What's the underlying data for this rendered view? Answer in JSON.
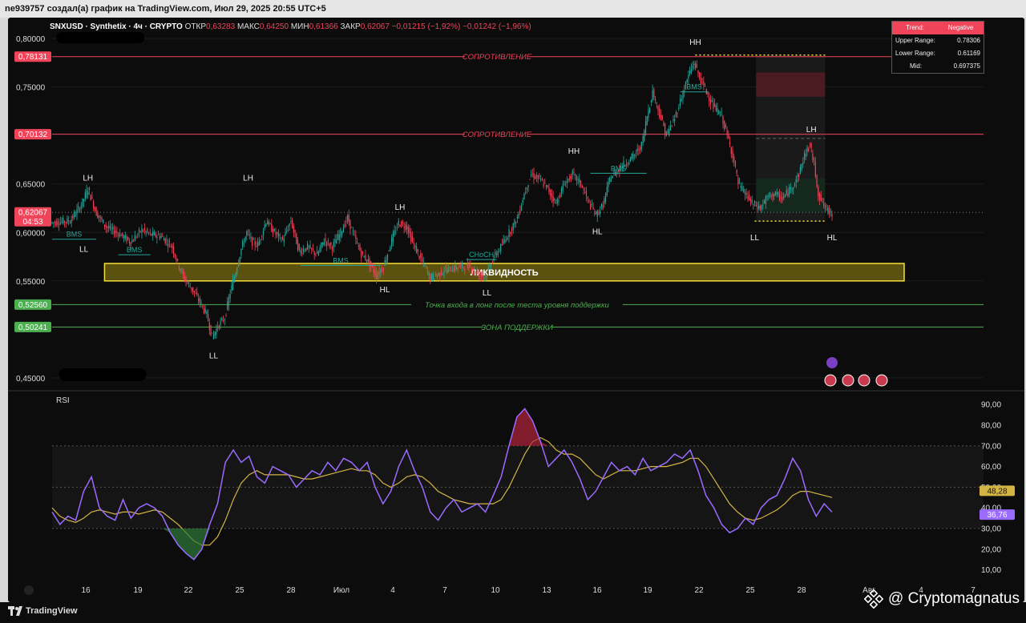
{
  "header_title": "ne939757 создал(а) график на TradingView.com, Июл 29, 2025 20:55 UTC+5",
  "legend": {
    "symbol": "SNXUSD · Synthetix · 4ч · CRYPTO",
    "open_label": "ОТКР",
    "open": "0,63283",
    "high_label": "МАКС",
    "high": "0,64250",
    "low_label": "МИН",
    "low": "0,61366",
    "close_label": "ЗАКР",
    "close": "0,62067",
    "change": "−0,01215 (−1,92%)",
    "change2": "−0,01242 (−1,96%)"
  },
  "trend_table": {
    "trend_label": "Trend:",
    "trend_value": "Negative",
    "upper_label": "Upper Range:",
    "upper_value": "0.78306",
    "lower_label": "Lower Range:",
    "lower_value": "0.61169",
    "mid_label": "Mid:",
    "mid_value": "0.697375"
  },
  "rsi_label": "RSI",
  "footer": {
    "brand": "TradingView",
    "watermark": "@ Cryptomagnatus"
  },
  "colors": {
    "up": "#26a69a",
    "down": "#f0445a",
    "resistance": "#f0445a",
    "support": "#4caf50",
    "rsi": "#9b6bff",
    "rsi_ma": "#d4b444",
    "liquidity": "#6b5f10"
  },
  "chart_data": [
    {
      "type": "candlestick",
      "x_ticks": [
        "16",
        "19",
        "22",
        "25",
        "28",
        "Июл",
        "4",
        "7",
        "10",
        "13",
        "16",
        "19",
        "22",
        "25",
        "28",
        "Авг",
        "4",
        "7"
      ],
      "y_ticks": [
        "0,80000",
        "0,75000",
        "0,65000",
        "0,60000",
        "0,55000",
        "0,45000"
      ],
      "ylim": [
        0.44,
        0.81
      ],
      "price_tags": [
        {
          "label": "0,78131",
          "value": 0.78131,
          "color": "#f0445a"
        },
        {
          "label": "0,70132",
          "value": 0.70132,
          "color": "#f0445a"
        },
        {
          "label": "0,62067",
          "value": 0.62067,
          "color": "#f0445a",
          "sub": "04:53"
        },
        {
          "label": "0,52560",
          "value": 0.5256,
          "color": "#4caf50"
        },
        {
          "label": "0,50241",
          "value": 0.50241,
          "color": "#4caf50"
        }
      ],
      "levels": [
        {
          "value": 0.78131,
          "text": "СОПРОТИВЛЕНИЕ",
          "color": "#f0445a"
        },
        {
          "value": 0.70132,
          "text": "СОПРОТИВЛЕНИЕ",
          "color": "#f0445a"
        },
        {
          "value": 0.5256,
          "text": "Точка входа в лонг после теста уровня поддержки",
          "color": "#4caf50"
        },
        {
          "value": 0.50241,
          "text": "ЗОНА ПОДДЕРЖКИ",
          "color": "#4caf50"
        }
      ],
      "liquidity_zone": {
        "from": 0.55,
        "to": 0.568,
        "text": "ЛИКВИДНОСТЬ"
      },
      "path": [
        [
          0,
          0.61
        ],
        [
          14,
          0.612
        ],
        [
          22,
          0.628
        ],
        [
          27,
          0.645
        ],
        [
          33,
          0.62
        ],
        [
          40,
          0.606
        ],
        [
          50,
          0.598
        ],
        [
          58,
          0.59
        ],
        [
          66,
          0.603
        ],
        [
          72,
          0.598
        ],
        [
          80,
          0.596
        ],
        [
          88,
          0.585
        ],
        [
          92,
          0.568
        ],
        [
          97,
          0.552
        ],
        [
          103,
          0.54
        ],
        [
          108,
          0.528
        ],
        [
          113,
          0.515
        ],
        [
          117,
          0.492
        ],
        [
          121,
          0.503
        ],
        [
          126,
          0.512
        ],
        [
          130,
          0.538
        ],
        [
          134,
          0.56
        ],
        [
          138,
          0.583
        ],
        [
          142,
          0.6
        ],
        [
          146,
          0.59
        ],
        [
          150,
          0.587
        ],
        [
          156,
          0.612
        ],
        [
          162,
          0.6
        ],
        [
          168,
          0.592
        ],
        [
          174,
          0.612
        ],
        [
          180,
          0.58
        ],
        [
          186,
          0.585
        ],
        [
          193,
          0.577
        ],
        [
          198,
          0.592
        ],
        [
          204,
          0.585
        ],
        [
          210,
          0.6
        ],
        [
          215,
          0.615
        ],
        [
          220,
          0.595
        ],
        [
          225,
          0.578
        ],
        [
          230,
          0.57
        ],
        [
          236,
          0.555
        ],
        [
          241,
          0.565
        ],
        [
          247,
          0.592
        ],
        [
          252,
          0.61
        ],
        [
          258,
          0.606
        ],
        [
          262,
          0.59
        ],
        [
          266,
          0.578
        ],
        [
          270,
          0.567
        ],
        [
          275,
          0.553
        ],
        [
          280,
          0.556
        ],
        [
          285,
          0.561
        ],
        [
          292,
          0.563
        ],
        [
          298,
          0.565
        ],
        [
          304,
          0.565
        ],
        [
          310,
          0.557
        ],
        [
          315,
          0.555
        ],
        [
          320,
          0.572
        ],
        [
          326,
          0.585
        ],
        [
          332,
          0.6
        ],
        [
          338,
          0.615
        ],
        [
          343,
          0.64
        ],
        [
          348,
          0.66
        ],
        [
          354,
          0.655
        ],
        [
          360,
          0.645
        ],
        [
          366,
          0.63
        ],
        [
          372,
          0.65
        ],
        [
          378,
          0.66
        ],
        [
          384,
          0.65
        ],
        [
          390,
          0.63
        ],
        [
          395,
          0.618
        ],
        [
          400,
          0.628
        ],
        [
          405,
          0.655
        ],
        [
          411,
          0.665
        ],
        [
          417,
          0.672
        ],
        [
          423,
          0.68
        ],
        [
          428,
          0.69
        ],
        [
          432,
          0.72
        ],
        [
          436,
          0.745
        ],
        [
          442,
          0.718
        ],
        [
          446,
          0.7
        ],
        [
          452,
          0.718
        ],
        [
          457,
          0.74
        ],
        [
          462,
          0.762
        ],
        [
          466,
          0.775
        ],
        [
          470,
          0.76
        ],
        [
          475,
          0.745
        ],
        [
          480,
          0.73
        ],
        [
          486,
          0.72
        ],
        [
          490,
          0.7
        ],
        [
          494,
          0.68
        ],
        [
          498,
          0.65
        ],
        [
          503,
          0.64
        ],
        [
          508,
          0.63
        ],
        [
          514,
          0.625
        ],
        [
          519,
          0.636
        ],
        [
          524,
          0.64
        ],
        [
          530,
          0.635
        ],
        [
          536,
          0.645
        ],
        [
          542,
          0.66
        ],
        [
          546,
          0.68
        ],
        [
          550,
          0.69
        ],
        [
          553,
          0.67
        ],
        [
          556,
          0.64
        ],
        [
          561,
          0.625
        ],
        [
          565,
          0.62
        ]
      ],
      "labels": [
        {
          "text": "LH",
          "i": 26,
          "v": 0.65,
          "pos": "above"
        },
        {
          "text": "LL",
          "i": 23,
          "v": 0.59,
          "pos": "below"
        },
        {
          "text": "LL",
          "i": 117,
          "v": 0.48,
          "pos": "below"
        },
        {
          "text": "LH",
          "i": 142,
          "v": 0.65,
          "pos": "above"
        },
        {
          "text": "LH",
          "i": 252,
          "v": 0.62,
          "pos": "above"
        },
        {
          "text": "HL",
          "i": 241,
          "v": 0.548,
          "pos": "below"
        },
        {
          "text": "LL",
          "i": 315,
          "v": 0.545,
          "pos": "below"
        },
        {
          "text": "HH",
          "i": 378,
          "v": 0.678,
          "pos": "above"
        },
        {
          "text": "HL",
          "i": 395,
          "v": 0.608,
          "pos": "below"
        },
        {
          "text": "HH",
          "i": 466,
          "v": 0.79,
          "pos": "above"
        },
        {
          "text": "LL",
          "i": 509,
          "v": 0.602,
          "pos": "below"
        },
        {
          "text": "LH",
          "i": 550,
          "v": 0.7,
          "pos": "above"
        },
        {
          "text": "HL",
          "i": 565,
          "v": 0.602,
          "pos": "below"
        }
      ],
      "annotations": [
        "BMS",
        "BMS",
        "BMS",
        "BMS",
        "BMS",
        "CHoCH"
      ]
    },
    {
      "type": "line",
      "title": "RSI",
      "y_ticks": [
        "90,00",
        "80,00",
        "70,00",
        "60,00",
        "50,00",
        "40,00",
        "30,00",
        "20,00",
        "10,00"
      ],
      "ylim": [
        6,
        92
      ],
      "value_tags": [
        {
          "label": "48,28",
          "value": 48.28,
          "color": "#d4b444"
        },
        {
          "label": "36,76",
          "value": 36.76,
          "color": "#9b6bff"
        }
      ],
      "overbought": 70,
      "oversold": 30,
      "mid": 50,
      "rsi": [
        38,
        32,
        36,
        34,
        48,
        55,
        40,
        36,
        34,
        44,
        35,
        40,
        42,
        40,
        36,
        28,
        22,
        18,
        15,
        20,
        32,
        42,
        62,
        68,
        62,
        65,
        55,
        52,
        60,
        58,
        56,
        50,
        54,
        58,
        56,
        62,
        58,
        64,
        62,
        58,
        62,
        50,
        42,
        48,
        60,
        68,
        58,
        50,
        38,
        34,
        40,
        44,
        38,
        40,
        42,
        38,
        46,
        55,
        70,
        84,
        88,
        82,
        72,
        60,
        64,
        68,
        62,
        54,
        44,
        48,
        55,
        62,
        58,
        60,
        56,
        64,
        58,
        60,
        62,
        66,
        64,
        68,
        58,
        46,
        40,
        32,
        28,
        30,
        35,
        32,
        40,
        44,
        46,
        54,
        64,
        58,
        44,
        36,
        42,
        38
      ],
      "rsi_ma": [
        40,
        36,
        34,
        33,
        35,
        38,
        39,
        38,
        37,
        38,
        38,
        37,
        38,
        39,
        38,
        35,
        32,
        28,
        24,
        22,
        22,
        26,
        34,
        44,
        52,
        56,
        58,
        56,
        56,
        56,
        56,
        55,
        54,
        54,
        55,
        56,
        57,
        58,
        59,
        58,
        58,
        56,
        52,
        50,
        52,
        55,
        56,
        55,
        52,
        48,
        46,
        44,
        43,
        42,
        42,
        42,
        42,
        44,
        50,
        58,
        66,
        72,
        74,
        72,
        68,
        66,
        66,
        64,
        60,
        56,
        54,
        56,
        58,
        58,
        58,
        59,
        60,
        60,
        60,
        61,
        62,
        64,
        64,
        60,
        54,
        48,
        42,
        38,
        35,
        34,
        35,
        37,
        39,
        42,
        46,
        48,
        48,
        47,
        46,
        45
      ]
    }
  ]
}
